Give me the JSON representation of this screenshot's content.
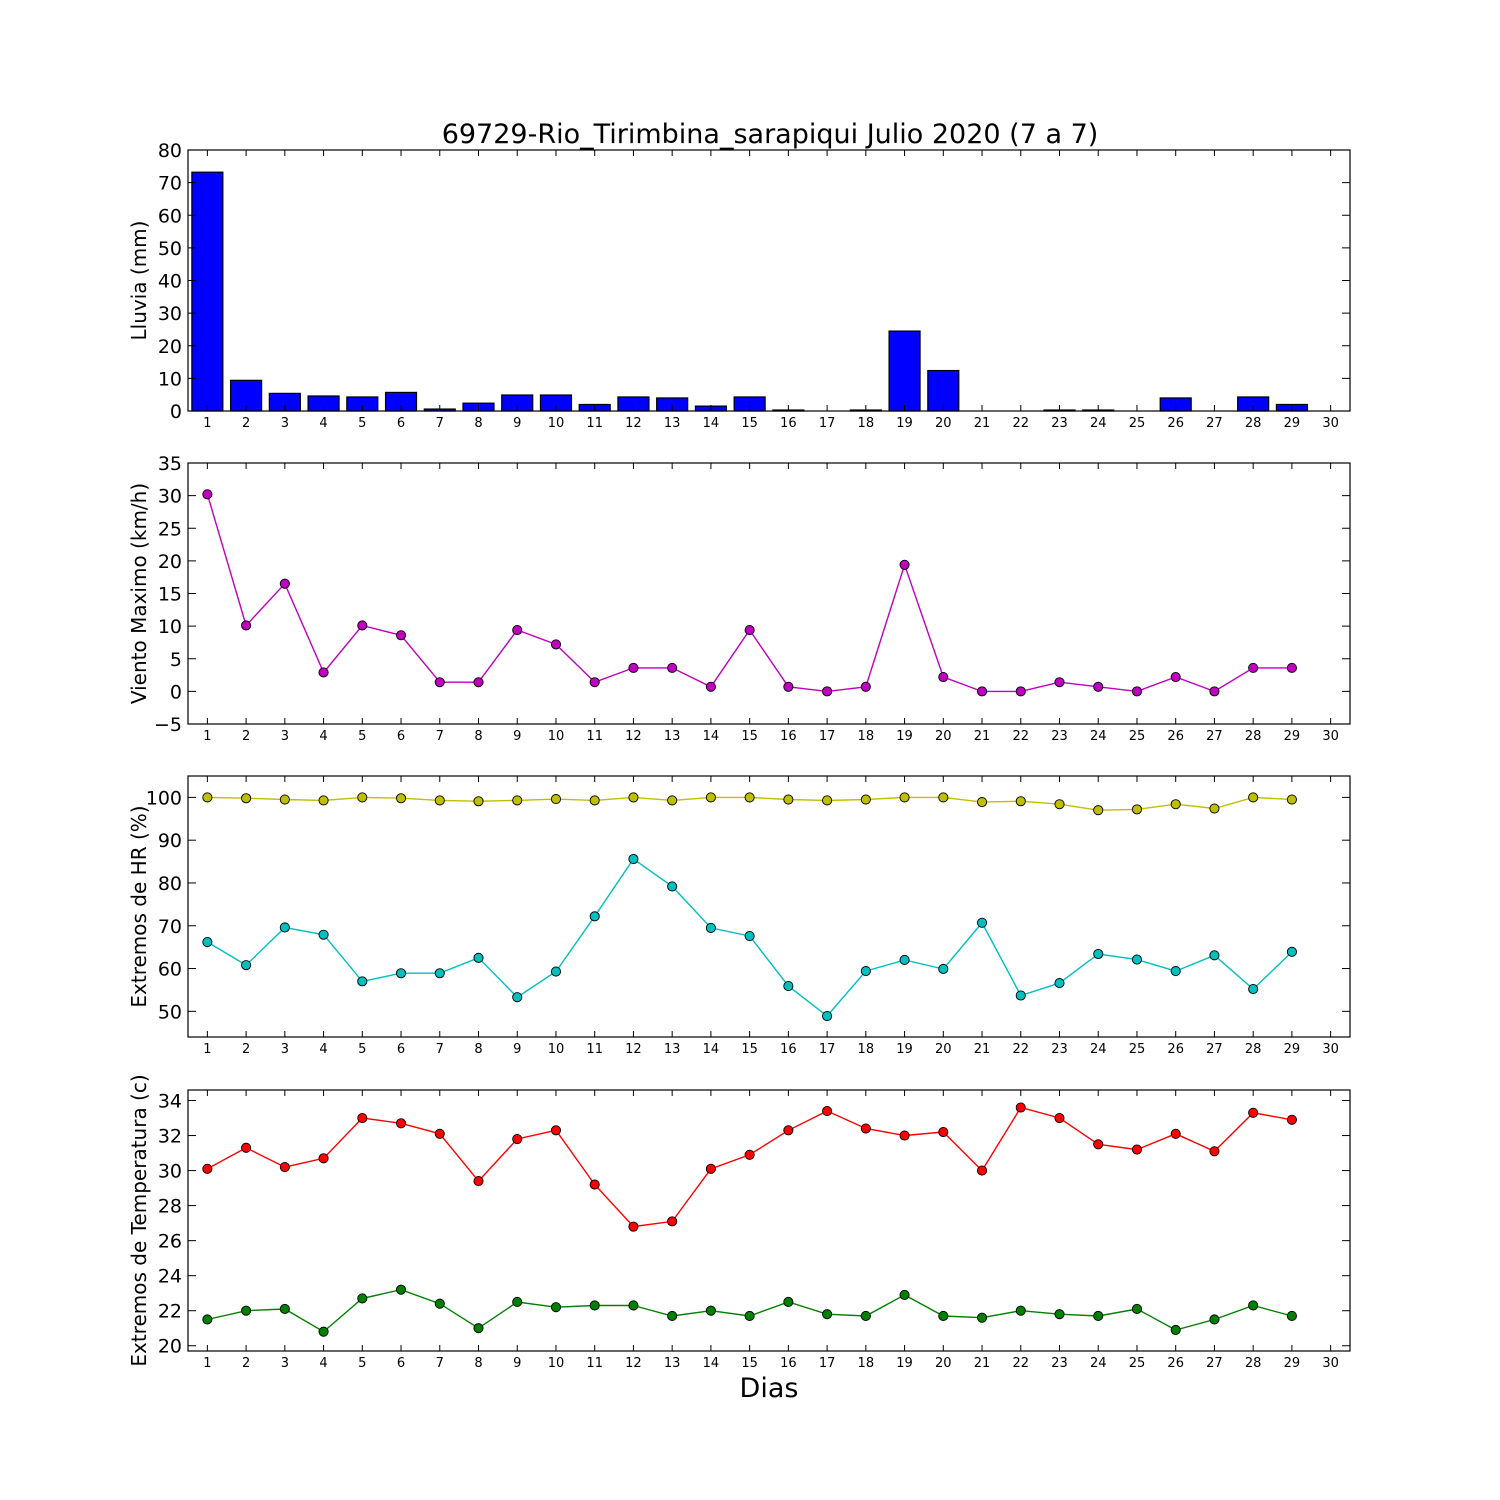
{
  "title": "69729-Rio_Tirimbina_sarapiqui Julio 2020  (7 a 7)",
  "xlabel": "Dias",
  "colors": {
    "rain": "#0000ff",
    "wind": "#bf00bf",
    "hr_max": "#bfbf00",
    "hr_min": "#00bfbf",
    "temp_max": "#ff0000",
    "temp_min": "#008000"
  },
  "chart_data": [
    {
      "type": "bar",
      "ylabel": "Lluvia (mm)",
      "xlim": [
        0.5,
        30.5
      ],
      "ylim": [
        0,
        80
      ],
      "yticks": [
        0,
        10,
        20,
        30,
        40,
        50,
        60,
        70,
        80
      ],
      "x_ticks": [
        1,
        2,
        3,
        4,
        5,
        6,
        7,
        8,
        9,
        10,
        11,
        12,
        13,
        14,
        15,
        16,
        17,
        18,
        19,
        20,
        21,
        22,
        23,
        24,
        25,
        26,
        27,
        28,
        29,
        30
      ],
      "series": [
        {
          "color": "#0000ff",
          "x": [
            1,
            2,
            3,
            4,
            5,
            6,
            7,
            8,
            9,
            10,
            11,
            12,
            13,
            14,
            15,
            16,
            17,
            18,
            19,
            20,
            21,
            22,
            23,
            24,
            25,
            26,
            27,
            28,
            29
          ],
          "values": [
            73.2,
            9.4,
            5.4,
            4.6,
            4.3,
            5.7,
            0.6,
            2.4,
            4.9,
            4.9,
            2.0,
            4.3,
            4.0,
            1.5,
            4.3,
            0.3,
            0,
            0.3,
            24.5,
            12.4,
            0,
            0,
            0.3,
            0.3,
            0,
            4.0,
            0,
            4.3,
            2.0
          ]
        }
      ]
    },
    {
      "type": "line",
      "ylabel": "Viento Maximo (km/h)",
      "xlim": [
        0.5,
        30.5
      ],
      "ylim": [
        -5,
        35
      ],
      "yticks": [
        -5,
        0,
        5,
        10,
        15,
        20,
        25,
        30,
        35
      ],
      "x_ticks": [
        1,
        2,
        3,
        4,
        5,
        6,
        7,
        8,
        9,
        10,
        11,
        12,
        13,
        14,
        15,
        16,
        17,
        18,
        19,
        20,
        21,
        22,
        23,
        24,
        25,
        26,
        27,
        28,
        29,
        30
      ],
      "series": [
        {
          "color": "#bf00bf",
          "x": [
            1,
            2,
            3,
            4,
            5,
            6,
            7,
            8,
            9,
            10,
            11,
            12,
            13,
            14,
            15,
            16,
            17,
            18,
            19,
            20,
            21,
            22,
            23,
            24,
            25,
            26,
            27,
            28,
            29
          ],
          "values": [
            30.2,
            10.1,
            16.5,
            2.9,
            10.1,
            8.6,
            1.4,
            1.4,
            9.4,
            7.2,
            1.4,
            3.6,
            3.6,
            0.7,
            9.4,
            0.7,
            0,
            0.7,
            19.4,
            2.2,
            0,
            0,
            1.4,
            0.7,
            0,
            2.2,
            0,
            3.6,
            3.6
          ]
        }
      ]
    },
    {
      "type": "line",
      "ylabel": "Extremos de HR (%)",
      "xlim": [
        0.5,
        30.5
      ],
      "ylim": [
        44,
        105
      ],
      "yticks": [
        50,
        60,
        70,
        80,
        90,
        100
      ],
      "x_ticks": [
        1,
        2,
        3,
        4,
        5,
        6,
        7,
        8,
        9,
        10,
        11,
        12,
        13,
        14,
        15,
        16,
        17,
        18,
        19,
        20,
        21,
        22,
        23,
        24,
        25,
        26,
        27,
        28,
        29,
        30
      ],
      "series": [
        {
          "color": "#bfbf00",
          "x": [
            1,
            2,
            3,
            4,
            5,
            6,
            7,
            8,
            9,
            10,
            11,
            12,
            13,
            14,
            15,
            16,
            17,
            18,
            19,
            20,
            21,
            22,
            23,
            24,
            25,
            26,
            27,
            28,
            29
          ],
          "values": [
            100,
            99.8,
            99.5,
            99.3,
            100,
            99.8,
            99.3,
            99.1,
            99.3,
            99.6,
            99.3,
            100,
            99.3,
            100,
            100,
            99.5,
            99.3,
            99.5,
            100,
            100,
            98.9,
            99.1,
            98.4,
            97,
            97.2,
            98.4,
            97.4,
            100,
            99.5
          ]
        },
        {
          "color": "#00bfbf",
          "x": [
            1,
            2,
            3,
            4,
            5,
            6,
            7,
            8,
            9,
            10,
            11,
            12,
            13,
            14,
            15,
            16,
            17,
            18,
            19,
            20,
            21,
            22,
            23,
            24,
            25,
            26,
            27,
            28,
            29
          ],
          "values": [
            66.2,
            60.8,
            69.6,
            67.9,
            57,
            58.9,
            58.9,
            62.5,
            53.3,
            59.3,
            72.2,
            85.6,
            79.2,
            69.5,
            67.6,
            55.9,
            48.9,
            59.4,
            62,
            59.9,
            70.7,
            53.7,
            56.6,
            63.4,
            62.1,
            59.4,
            63.1,
            55.2,
            63.9
          ]
        }
      ]
    },
    {
      "type": "line",
      "ylabel": "Extremos de Temperatura (c)",
      "xlim": [
        0.5,
        30.5
      ],
      "ylim": [
        19.7,
        34.6
      ],
      "yticks": [
        20,
        22,
        24,
        26,
        28,
        30,
        32,
        34
      ],
      "x_ticks": [
        1,
        2,
        3,
        4,
        5,
        6,
        7,
        8,
        9,
        10,
        11,
        12,
        13,
        14,
        15,
        16,
        17,
        18,
        19,
        20,
        21,
        22,
        23,
        24,
        25,
        26,
        27,
        28,
        29,
        30
      ],
      "series": [
        {
          "color": "#ff0000",
          "x": [
            1,
            2,
            3,
            4,
            5,
            6,
            7,
            8,
            9,
            10,
            11,
            12,
            13,
            14,
            15,
            16,
            17,
            18,
            19,
            20,
            21,
            22,
            23,
            24,
            25,
            26,
            27,
            28,
            29
          ],
          "values": [
            30.1,
            31.3,
            30.2,
            30.7,
            33,
            32.7,
            32.1,
            29.4,
            31.8,
            32.3,
            29.2,
            26.8,
            27.1,
            30.1,
            30.9,
            32.3,
            33.4,
            32.4,
            32,
            32.2,
            30,
            33.6,
            33,
            31.5,
            31.2,
            32.1,
            31.1,
            33.3,
            32.9
          ]
        },
        {
          "color": "#008000",
          "x": [
            1,
            2,
            3,
            4,
            5,
            6,
            7,
            8,
            9,
            10,
            11,
            12,
            13,
            14,
            15,
            16,
            17,
            18,
            19,
            20,
            21,
            22,
            23,
            24,
            25,
            26,
            27,
            28,
            29
          ],
          "values": [
            21.5,
            22,
            22.1,
            20.8,
            22.7,
            23.2,
            22.4,
            21,
            22.5,
            22.2,
            22.3,
            22.3,
            21.7,
            22,
            21.7,
            22.5,
            21.8,
            21.7,
            22.9,
            21.7,
            21.6,
            22,
            21.8,
            21.7,
            22.1,
            20.9,
            21.5,
            22.3,
            21.7
          ]
        }
      ]
    }
  ]
}
